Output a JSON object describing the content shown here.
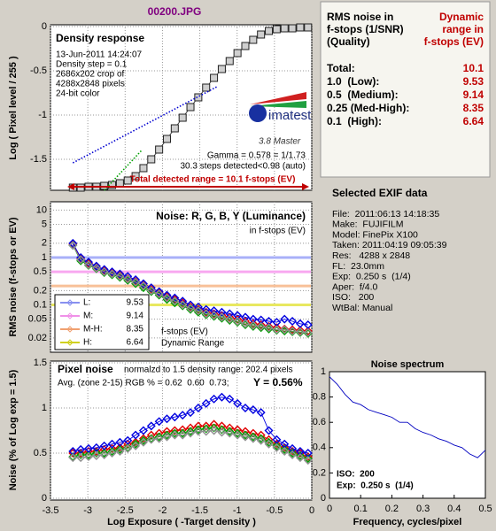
{
  "title": "00200.JPG",
  "chart_data": [
    {
      "type": "line",
      "title": "Density response",
      "notes": [
        "13-Jun-2011 14:24:07",
        "Density step = 0.1",
        "2686x202 crop of",
        "4288x2848 pixels",
        "24-bit color"
      ],
      "logo_text": "imatest",
      "version": "3.8 Master",
      "annotations": [
        "Gamma = 0.578 = 1/1.73",
        "30.3 steps detected<0.98 (auto)"
      ],
      "range_label": "Total detected range = 10.1 f-stops (EV)",
      "ylabel": "Log ( Pixel level / 255 )",
      "xlim": [
        -3.5,
        0
      ],
      "xticks": [
        -3.5,
        -3,
        -2.5,
        -2,
        -1.5,
        -1,
        -0.5,
        0
      ],
      "ylim": [
        -1.85,
        0.02
      ],
      "yticks": [
        0,
        -0.5,
        -1,
        -1.5
      ],
      "grid": true,
      "series": [
        {
          "color": "#333333",
          "marker": "square",
          "x": [
            -3.2,
            -3.095,
            -2.99,
            -2.885,
            -2.78,
            -2.675,
            -2.57,
            -2.465,
            -2.36,
            -2.255,
            -2.15,
            -2.045,
            -1.94,
            -1.835,
            -1.73,
            -1.625,
            -1.52,
            -1.415,
            -1.31,
            -1.205,
            -1.1,
            -0.995,
            -0.89,
            -0.785,
            -0.68,
            -0.575,
            -0.47,
            -0.365,
            -0.26,
            -0.155,
            -0.05
          ],
          "values": [
            -1.82,
            -1.82,
            -1.81,
            -1.81,
            -1.8,
            -1.79,
            -1.77,
            -1.74,
            -1.69,
            -1.6,
            -1.5,
            -1.39,
            -1.27,
            -1.15,
            -1.03,
            -0.91,
            -0.8,
            -0.69,
            -0.58,
            -0.48,
            -0.39,
            -0.3,
            -0.22,
            -0.15,
            -0.09,
            -0.05,
            -0.03,
            -0.02,
            -0.02,
            -0.01,
            -0.01
          ]
        },
        {
          "color": "#0000d0",
          "style": "dotted",
          "x": [
            -3.2,
            -1.27
          ],
          "values": [
            -1.54,
            -0.68
          ]
        },
        {
          "color": "#00a000",
          "style": "dotted",
          "x": [
            -2.78,
            -2.28
          ],
          "values": [
            -1.85,
            -1.4
          ]
        }
      ]
    },
    {
      "type": "line",
      "title": "Noise: R, G, B, Y (Luminance)",
      "subtitle": "in f-stops (EV)",
      "ylabel": "RMS noise (f-stops or EV)",
      "log_scale_y": true,
      "xlim": [
        -3.5,
        0
      ],
      "xticks": [
        -3.5,
        -3,
        -2.5,
        -2,
        -1.5,
        -1,
        -0.5,
        0
      ],
      "ylim": [
        0.01,
        15
      ],
      "yticks": [
        10,
        5,
        2,
        1,
        0.5,
        0.2,
        0.1,
        0.05,
        0.02
      ],
      "grid": true,
      "marker": "diamond",
      "x": [
        -3.2,
        -3.095,
        -2.99,
        -2.885,
        -2.78,
        -2.675,
        -2.57,
        -2.465,
        -2.36,
        -2.255,
        -2.15,
        -2.045,
        -1.94,
        -1.835,
        -1.73,
        -1.625,
        -1.52,
        -1.415,
        -1.31,
        -1.205,
        -1.1,
        -0.995,
        -0.89,
        -0.785,
        -0.68,
        -0.575,
        -0.47,
        -0.365,
        -0.26,
        -0.155,
        -0.05
      ],
      "reference_lines": [
        {
          "value": 1,
          "color": "#a8b0f8"
        },
        {
          "value": 0.5,
          "color": "#f8a8f0"
        },
        {
          "value": 0.25,
          "color": "#f8c098"
        },
        {
          "value": 0.1,
          "color": "#e8e860"
        }
      ],
      "legend": {
        "position": "lower left",
        "entries": [
          {
            "label": "L:",
            "value": 9.53,
            "color": "#8890f0"
          },
          {
            "label": "M:",
            "value": 9.14,
            "color": "#f090e8"
          },
          {
            "label": "M-H:",
            "value": 8.35,
            "color": "#f0a070"
          },
          {
            "label": "H:",
            "value": 6.64,
            "color": "#d0d020"
          }
        ],
        "notes": [
          "f-stops (EV)",
          "Dynamic Range"
        ]
      },
      "series": [
        {
          "color": "#e00000",
          "values": [
            1.9,
            0.95,
            0.75,
            0.62,
            0.52,
            0.47,
            0.42,
            0.36,
            0.31,
            0.26,
            0.21,
            0.18,
            0.15,
            0.13,
            0.11,
            0.09,
            0.08,
            0.07,
            0.065,
            0.06,
            0.055,
            0.05,
            0.045,
            0.04,
            0.038,
            0.035,
            0.033,
            0.031,
            0.03,
            0.029,
            0.028
          ]
        },
        {
          "color": "#00a000",
          "values": [
            1.8,
            0.85,
            0.68,
            0.58,
            0.48,
            0.43,
            0.38,
            0.33,
            0.28,
            0.23,
            0.19,
            0.16,
            0.13,
            0.11,
            0.095,
            0.08,
            0.07,
            0.062,
            0.057,
            0.052,
            0.047,
            0.043,
            0.038,
            0.035,
            0.033,
            0.031,
            0.029,
            0.028,
            0.027,
            0.026,
            0.025
          ]
        },
        {
          "color": "#0000e0",
          "values": [
            2,
            1.0,
            0.8,
            0.66,
            0.56,
            0.5,
            0.45,
            0.4,
            0.34,
            0.28,
            0.23,
            0.19,
            0.16,
            0.14,
            0.12,
            0.1,
            0.09,
            0.08,
            0.075,
            0.07,
            0.065,
            0.06,
            0.055,
            0.05,
            0.048,
            0.045,
            0.043,
            0.05,
            0.045,
            0.04,
            0.038
          ]
        },
        {
          "color": "#909090",
          "values": [
            1.8,
            0.9,
            0.7,
            0.6,
            0.5,
            0.45,
            0.4,
            0.35,
            0.3,
            0.25,
            0.2,
            0.17,
            0.14,
            0.12,
            0.1,
            0.085,
            0.075,
            0.065,
            0.06,
            0.055,
            0.05,
            0.045,
            0.04,
            0.037,
            0.035,
            0.033,
            0.03,
            0.03,
            0.028,
            0.027,
            0.026
          ]
        }
      ]
    },
    {
      "type": "line",
      "title": "Pixel noise",
      "subtitle": "normalzd to 1.5 density range: 202.4 pixels",
      "annotation": "Avg. (zone 2-15) RGB % = 0.62  0.60  0.73;",
      "highlight": "Y = 0.56%",
      "xlabel": "Log Exposure ( -Target density )",
      "ylabel": "Noise (% of Log exp = 1.5)",
      "xlim": [
        -3.5,
        0
      ],
      "xticks": [
        -3.5,
        -3,
        -2.5,
        -2,
        -1.5,
        -1,
        -0.5,
        0
      ],
      "ylim": [
        -0.02,
        1.52
      ],
      "yticks": [
        0,
        0.5,
        1,
        1.5
      ],
      "grid": true,
      "marker": "diamond",
      "x": [
        -3.2,
        -3.095,
        -2.99,
        -2.885,
        -2.78,
        -2.675,
        -2.57,
        -2.465,
        -2.36,
        -2.255,
        -2.15,
        -2.045,
        -1.94,
        -1.835,
        -1.73,
        -1.625,
        -1.52,
        -1.415,
        -1.31,
        -1.205,
        -1.1,
        -0.995,
        -0.89,
        -0.785,
        -0.68,
        -0.575,
        -0.47,
        -0.365,
        -0.26,
        -0.155,
        -0.05
      ],
      "series": [
        {
          "color": "#e00000",
          "values": [
            0.5,
            0.5,
            0.52,
            0.52,
            0.54,
            0.55,
            0.56,
            0.6,
            0.62,
            0.66,
            0.7,
            0.72,
            0.74,
            0.75,
            0.76,
            0.78,
            0.8,
            0.8,
            0.82,
            0.8,
            0.78,
            0.76,
            0.74,
            0.72,
            0.7,
            0.65,
            0.6,
            0.56,
            0.52,
            0.5,
            0.46
          ]
        },
        {
          "color": "#00a000",
          "values": [
            0.46,
            0.48,
            0.48,
            0.5,
            0.5,
            0.52,
            0.54,
            0.56,
            0.6,
            0.64,
            0.66,
            0.68,
            0.7,
            0.72,
            0.72,
            0.74,
            0.76,
            0.77,
            0.78,
            0.76,
            0.74,
            0.72,
            0.7,
            0.68,
            0.66,
            0.62,
            0.58,
            0.54,
            0.5,
            0.47,
            0.44
          ]
        },
        {
          "color": "#0000e0",
          "values": [
            0.52,
            0.54,
            0.55,
            0.56,
            0.58,
            0.6,
            0.62,
            0.64,
            0.7,
            0.75,
            0.8,
            0.85,
            0.88,
            0.9,
            0.92,
            0.95,
            1.0,
            1.05,
            1.1,
            1.12,
            1.1,
            1.05,
            1.0,
            0.98,
            0.95,
            0.75,
            0.65,
            0.6,
            0.55,
            0.52,
            0.5
          ]
        },
        {
          "color": "#909090",
          "values": [
            0.45,
            0.45,
            0.46,
            0.47,
            0.48,
            0.5,
            0.52,
            0.55,
            0.58,
            0.62,
            0.65,
            0.66,
            0.68,
            0.7,
            0.7,
            0.72,
            0.74,
            0.74,
            0.75,
            0.73,
            0.72,
            0.7,
            0.68,
            0.66,
            0.64,
            0.6,
            0.56,
            0.52,
            0.48,
            0.45,
            0.42
          ]
        }
      ]
    },
    {
      "type": "line",
      "title": "Noise spectrum",
      "xlabel": "Frequency, cycles/pixel",
      "annotations": [
        "ISO:  200",
        "Exp:  0.250 s  (1/4)"
      ],
      "xlim": [
        0,
        0.5
      ],
      "xticks": [
        0,
        0.1,
        0.2,
        0.3,
        0.4,
        0.5
      ],
      "ylim": [
        0,
        1
      ],
      "yticks": [
        0,
        0.2,
        0.4,
        0.6,
        0.8,
        1
      ],
      "grid": false,
      "x": [
        0,
        0.025,
        0.05,
        0.075,
        0.1,
        0.125,
        0.15,
        0.175,
        0.2,
        0.225,
        0.25,
        0.275,
        0.3,
        0.325,
        0.35,
        0.375,
        0.4,
        0.425,
        0.45,
        0.475,
        0.5
      ],
      "series": [
        {
          "color": "#0000c0",
          "values": [
            0.96,
            0.9,
            0.82,
            0.76,
            0.74,
            0.7,
            0.68,
            0.66,
            0.64,
            0.6,
            0.6,
            0.55,
            0.52,
            0.5,
            0.47,
            0.45,
            0.42,
            0.4,
            0.35,
            0.32,
            0.38
          ]
        }
      ]
    }
  ],
  "dynamic_range_table": {
    "header_left": [
      "RMS noise in",
      "f-stops (1/SNR)",
      "(Quality)"
    ],
    "header_right": [
      "Dynamic",
      "range in",
      "f-stops (EV)"
    ],
    "rows": [
      {
        "label": "Total:",
        "value": 10.1
      },
      {
        "label": "1.0  (Low):",
        "value": 9.53
      },
      {
        "label": "0.5  (Medium):",
        "value": 9.14
      },
      {
        "label": "0.25 (Med-High):",
        "value": 8.35
      },
      {
        "label": "0.1  (High):",
        "value": 6.64
      }
    ]
  },
  "exif": {
    "title": "Selected EXIF data",
    "lines": [
      "File:  2011:06:13 14:18:35",
      "Make:  FUJIFILM",
      "Model: FinePix X100",
      "Taken: 2011:04:19 09:05:39",
      "Res:   4288 x 2848",
      "FL:  23.0mm",
      "Exp:  0.250 s  (1/4)",
      "Aper:  f/4.0",
      "ISO:   200",
      "WtBal: Manual"
    ]
  }
}
